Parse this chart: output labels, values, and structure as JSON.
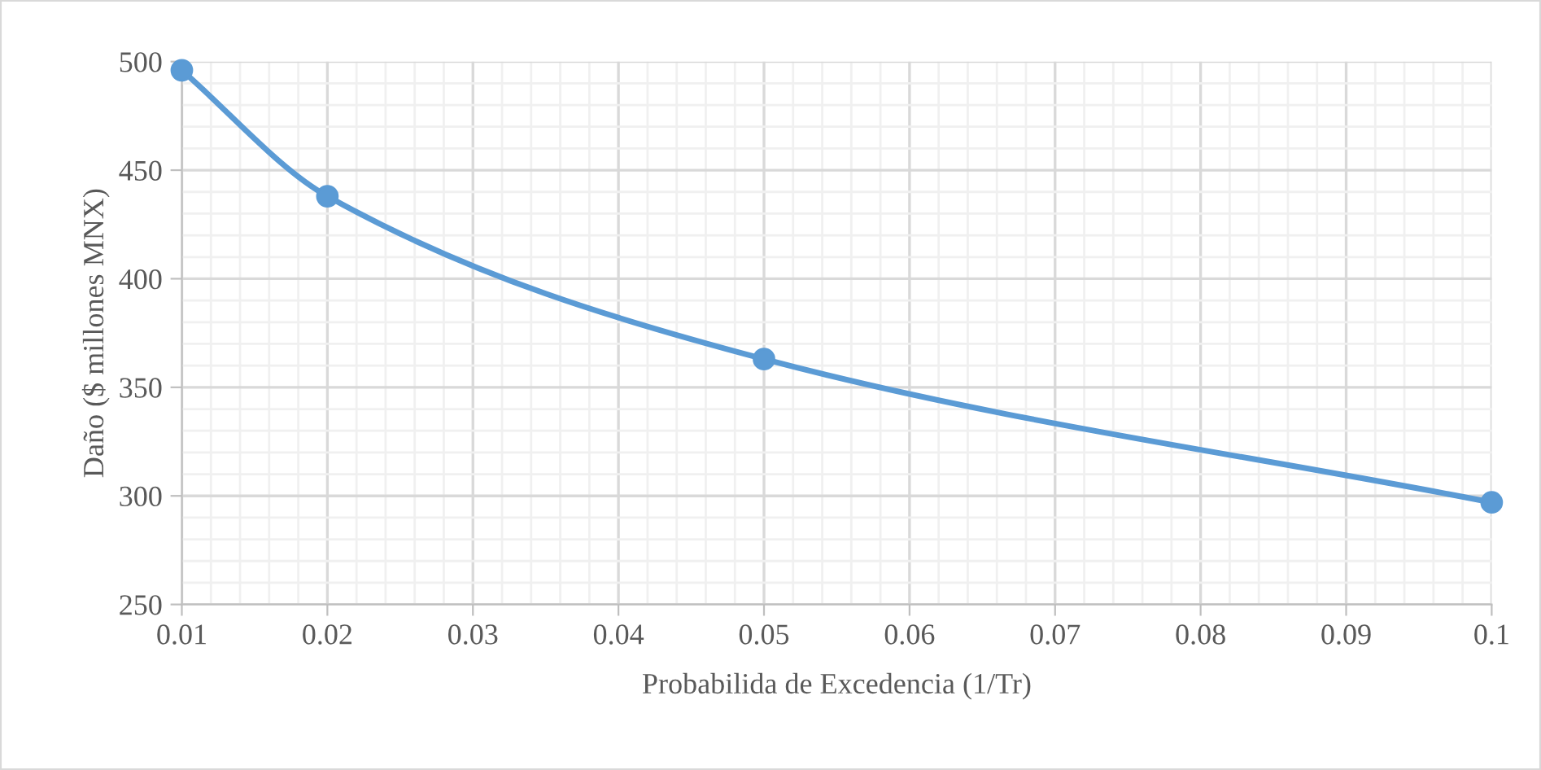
{
  "chart_data": {
    "type": "line",
    "xlabel": "Probabilida de Excedencia (1/Tr)",
    "ylabel": "Daño ($ millones MNX)",
    "x": [
      0.01,
      0.02,
      0.05,
      0.1
    ],
    "series": [
      {
        "color": "#5b9bd5",
        "values": [
          496,
          438,
          363,
          297
        ]
      }
    ],
    "xlim": [
      0.01,
      0.1
    ],
    "xticks": [
      0.01,
      0.02,
      0.03,
      0.04,
      0.05,
      0.06,
      0.07,
      0.08,
      0.09,
      0.1
    ],
    "ylim": [
      250,
      500
    ],
    "yticks": [
      250,
      300,
      350,
      400,
      450,
      500
    ],
    "grid": true,
    "marker": "circle",
    "line_style": "solid"
  }
}
